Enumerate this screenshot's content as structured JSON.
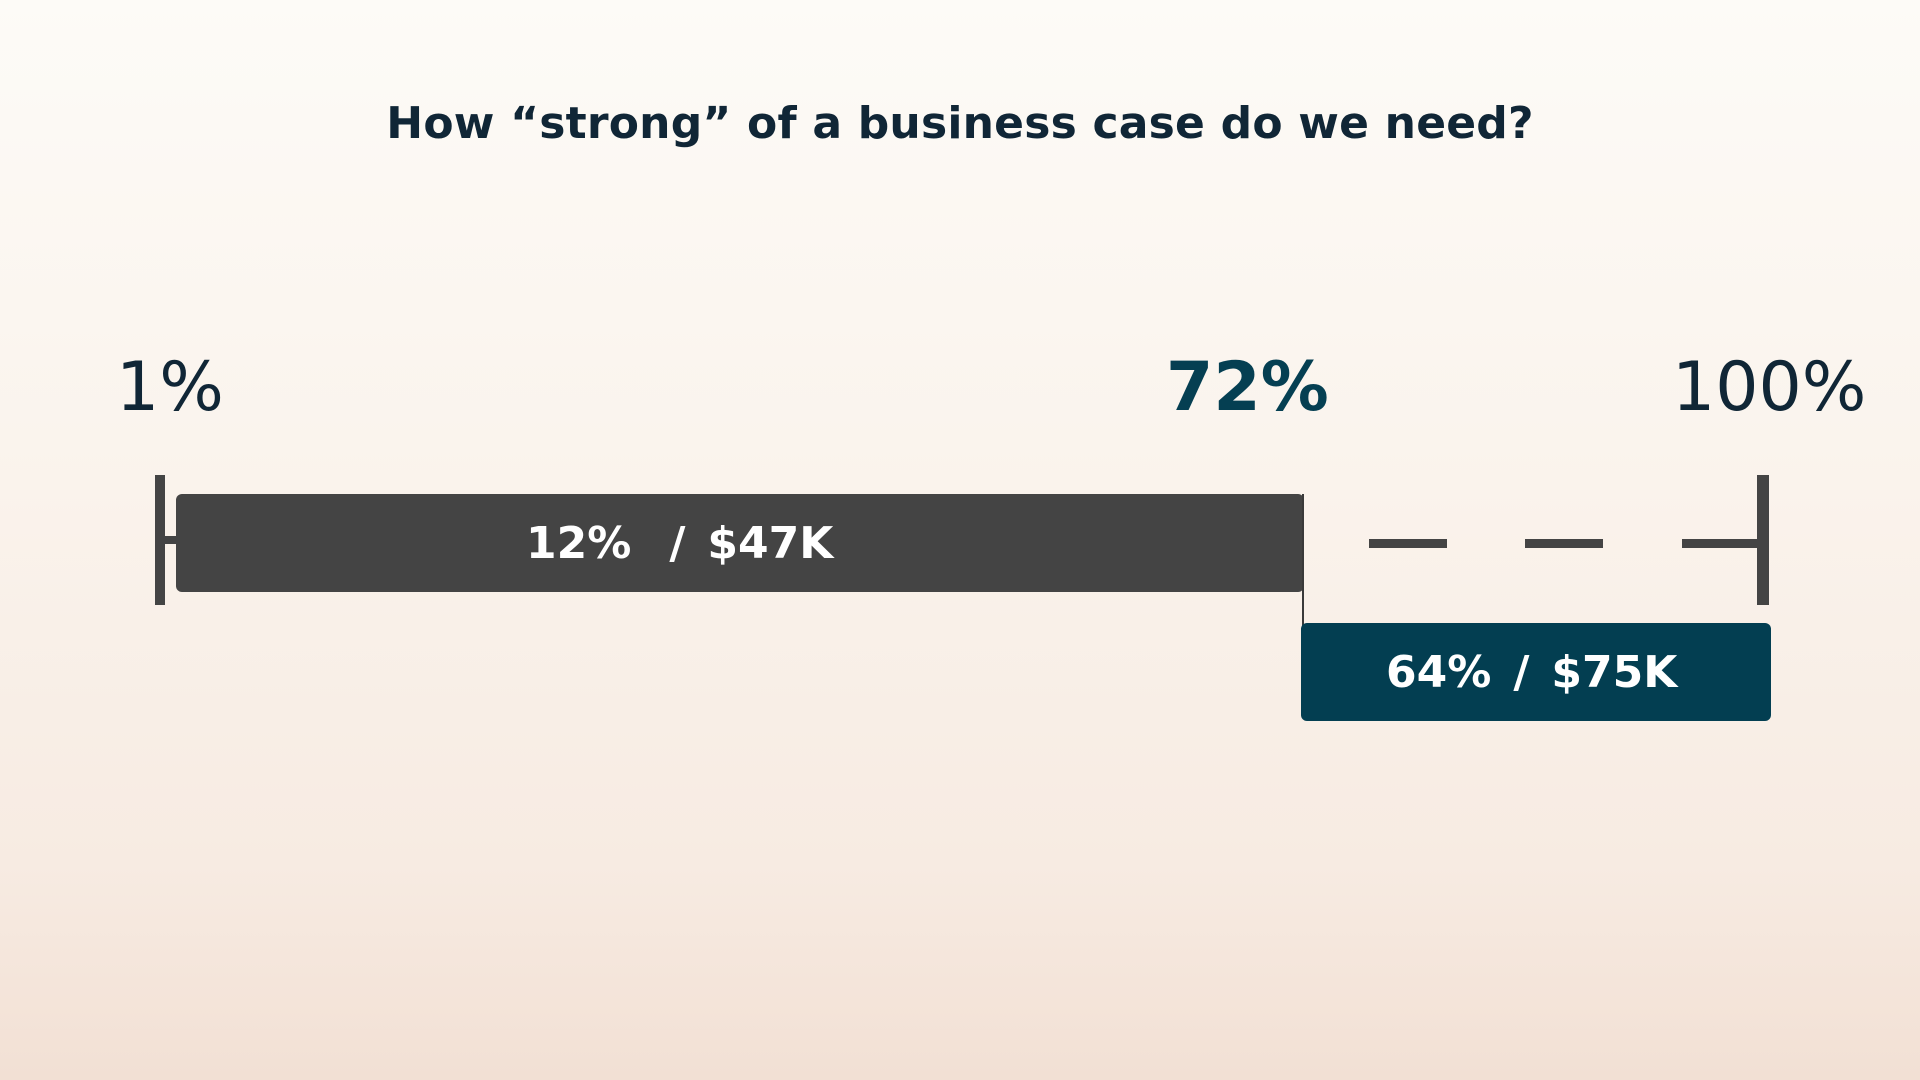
{
  "title": "How “strong” of a business case do we need?",
  "scale": {
    "start_label": "1%",
    "threshold_label": "72%",
    "end_label": "100%"
  },
  "segments": [
    {
      "percent": "12%",
      "separator": "/",
      "amount": "$47K",
      "color": "#444444"
    },
    {
      "percent": "64%",
      "separator": "/",
      "amount": "$75K",
      "color": "#033e51"
    }
  ],
  "colors": {
    "text_dark": "#102636",
    "accent_teal": "#053f52",
    "bar_grey": "#444444"
  }
}
